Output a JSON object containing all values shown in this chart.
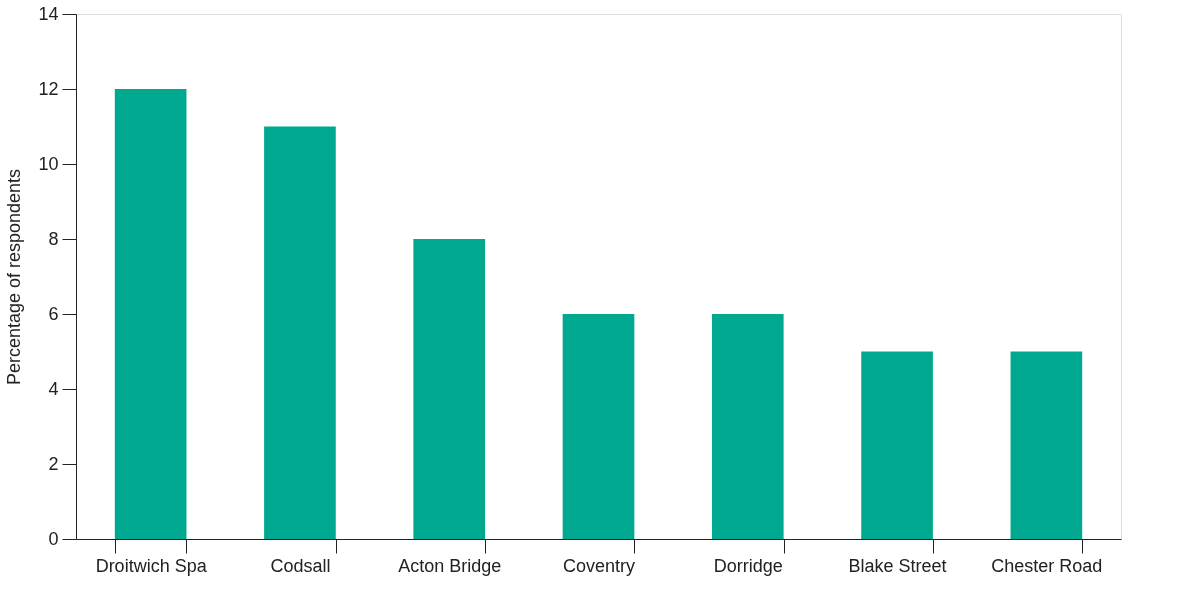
{
  "chart_data": {
    "type": "bar",
    "ylabel": "Percentage of respondents",
    "categories": [
      "Droitwich Spa",
      "Codsall",
      "Acton Bridge",
      "Coventry",
      "Dorridge",
      "Blake Street",
      "Chester Road"
    ],
    "values": [
      12,
      11,
      8,
      6,
      6,
      5,
      5
    ],
    "color": "#00a88f",
    "ylim": [
      0,
      14
    ],
    "yticks": [
      0,
      2,
      4,
      6,
      8,
      10,
      12,
      14
    ],
    "grid": false
  }
}
